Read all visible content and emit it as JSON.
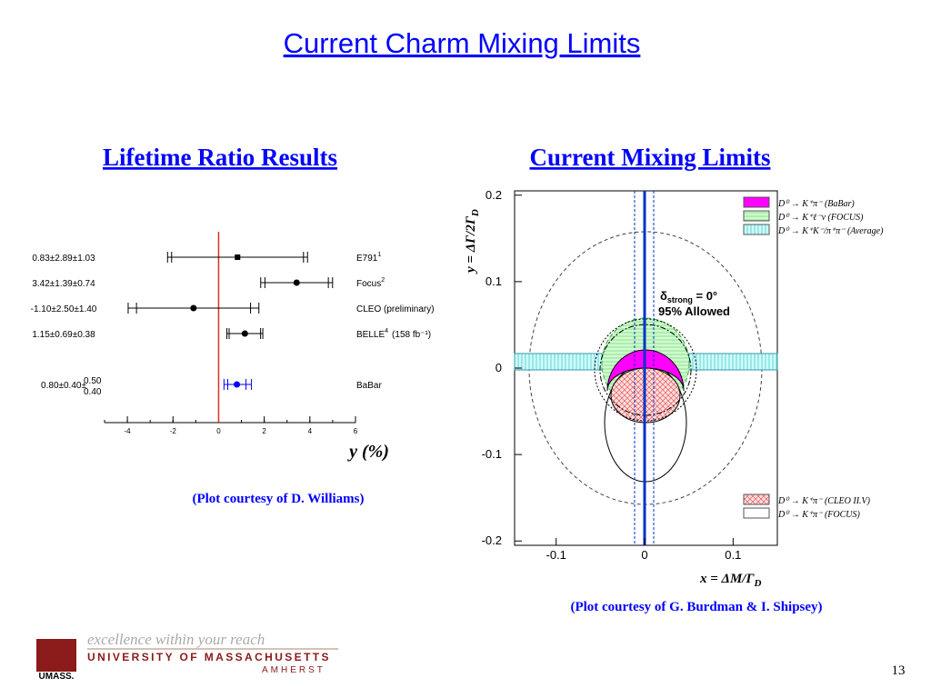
{
  "title": "Current Charm Mixing Limits",
  "left": {
    "heading": "Lifetime Ratio Results",
    "xlabel": "y (%)",
    "xlim": [
      -5,
      6
    ],
    "xticks": [
      -4,
      -2,
      0,
      2,
      4,
      6
    ],
    "rows": [
      {
        "label": "0.83±2.89±1.03",
        "experiment": "E791",
        "ref": "1",
        "value": 0.83,
        "stat": 2.89,
        "syst": 1.03
      },
      {
        "label": "3.42±1.39±0.74",
        "experiment": "Focus",
        "ref": "2",
        "value": 3.42,
        "stat": 1.39,
        "syst": 0.74
      },
      {
        "label": "-1.10±2.50±1.40",
        "experiment": "CLEO (preliminary)",
        "value": -1.1,
        "stat": 2.5,
        "syst": 1.4
      },
      {
        "label": "1.15±0.69±0.38",
        "experiment": "BELLE",
        "ref": "4",
        "note": "(158 fb⁻¹)",
        "value": 1.15,
        "stat": 0.69,
        "syst": 0.38
      },
      {
        "label": "0.80±0.40±",
        "label_up": "0.50",
        "label_down": "0.40",
        "experiment": "BaBar",
        "value": 0.8,
        "stat": 0.4,
        "syst_up": 0.5,
        "syst_down": 0.4
      }
    ],
    "credit": "(Plot courtesy of D. Williams)"
  },
  "right": {
    "heading": "Current Mixing Limits",
    "xlabel": "x = ΔM/Γ",
    "xlabel_sub": "D",
    "ylabel": "y = ΔΓ/2Γ",
    "ylabel_sub": "D",
    "xlim": [
      -0.147,
      0.15
    ],
    "ylim": [
      -0.205,
      0.205
    ],
    "xticks": [
      -0.1,
      0,
      0.1
    ],
    "yticks": [
      0.2,
      0.1,
      0,
      -0.1,
      -0.2
    ],
    "legend": [
      {
        "label": "D⁰ → K⁺π⁻ (BaBar)",
        "color": "#ff00ff"
      },
      {
        "label": "D⁰ → K⁺ℓ⁻ν (FOCUS)",
        "color": "#ccffcc"
      },
      {
        "label": "D⁰ → K⁺K⁻/π⁺π⁻ (Average)",
        "color": "#ccffff"
      },
      {
        "label": "D⁰ → K⁺π⁻ (CLEO II.V)",
        "color": "#ff9999"
      },
      {
        "label": "D⁰ → K⁺π⁻ (FOCUS)",
        "color": "#ffffff"
      }
    ],
    "annotation": {
      "symbol": "δ",
      "sub": "strong",
      "text": " = 0°"
    },
    "allowed": "95% Allowed",
    "credit": "(Plot courtesy of G. Burdman & I. Shipsey)"
  },
  "footer": {
    "motto": "excellence within your reach",
    "university": "UNIVERSITY OF MASSACHUSETTS",
    "campus": "AMHERST",
    "logo": "UMASS.",
    "page": "13"
  }
}
